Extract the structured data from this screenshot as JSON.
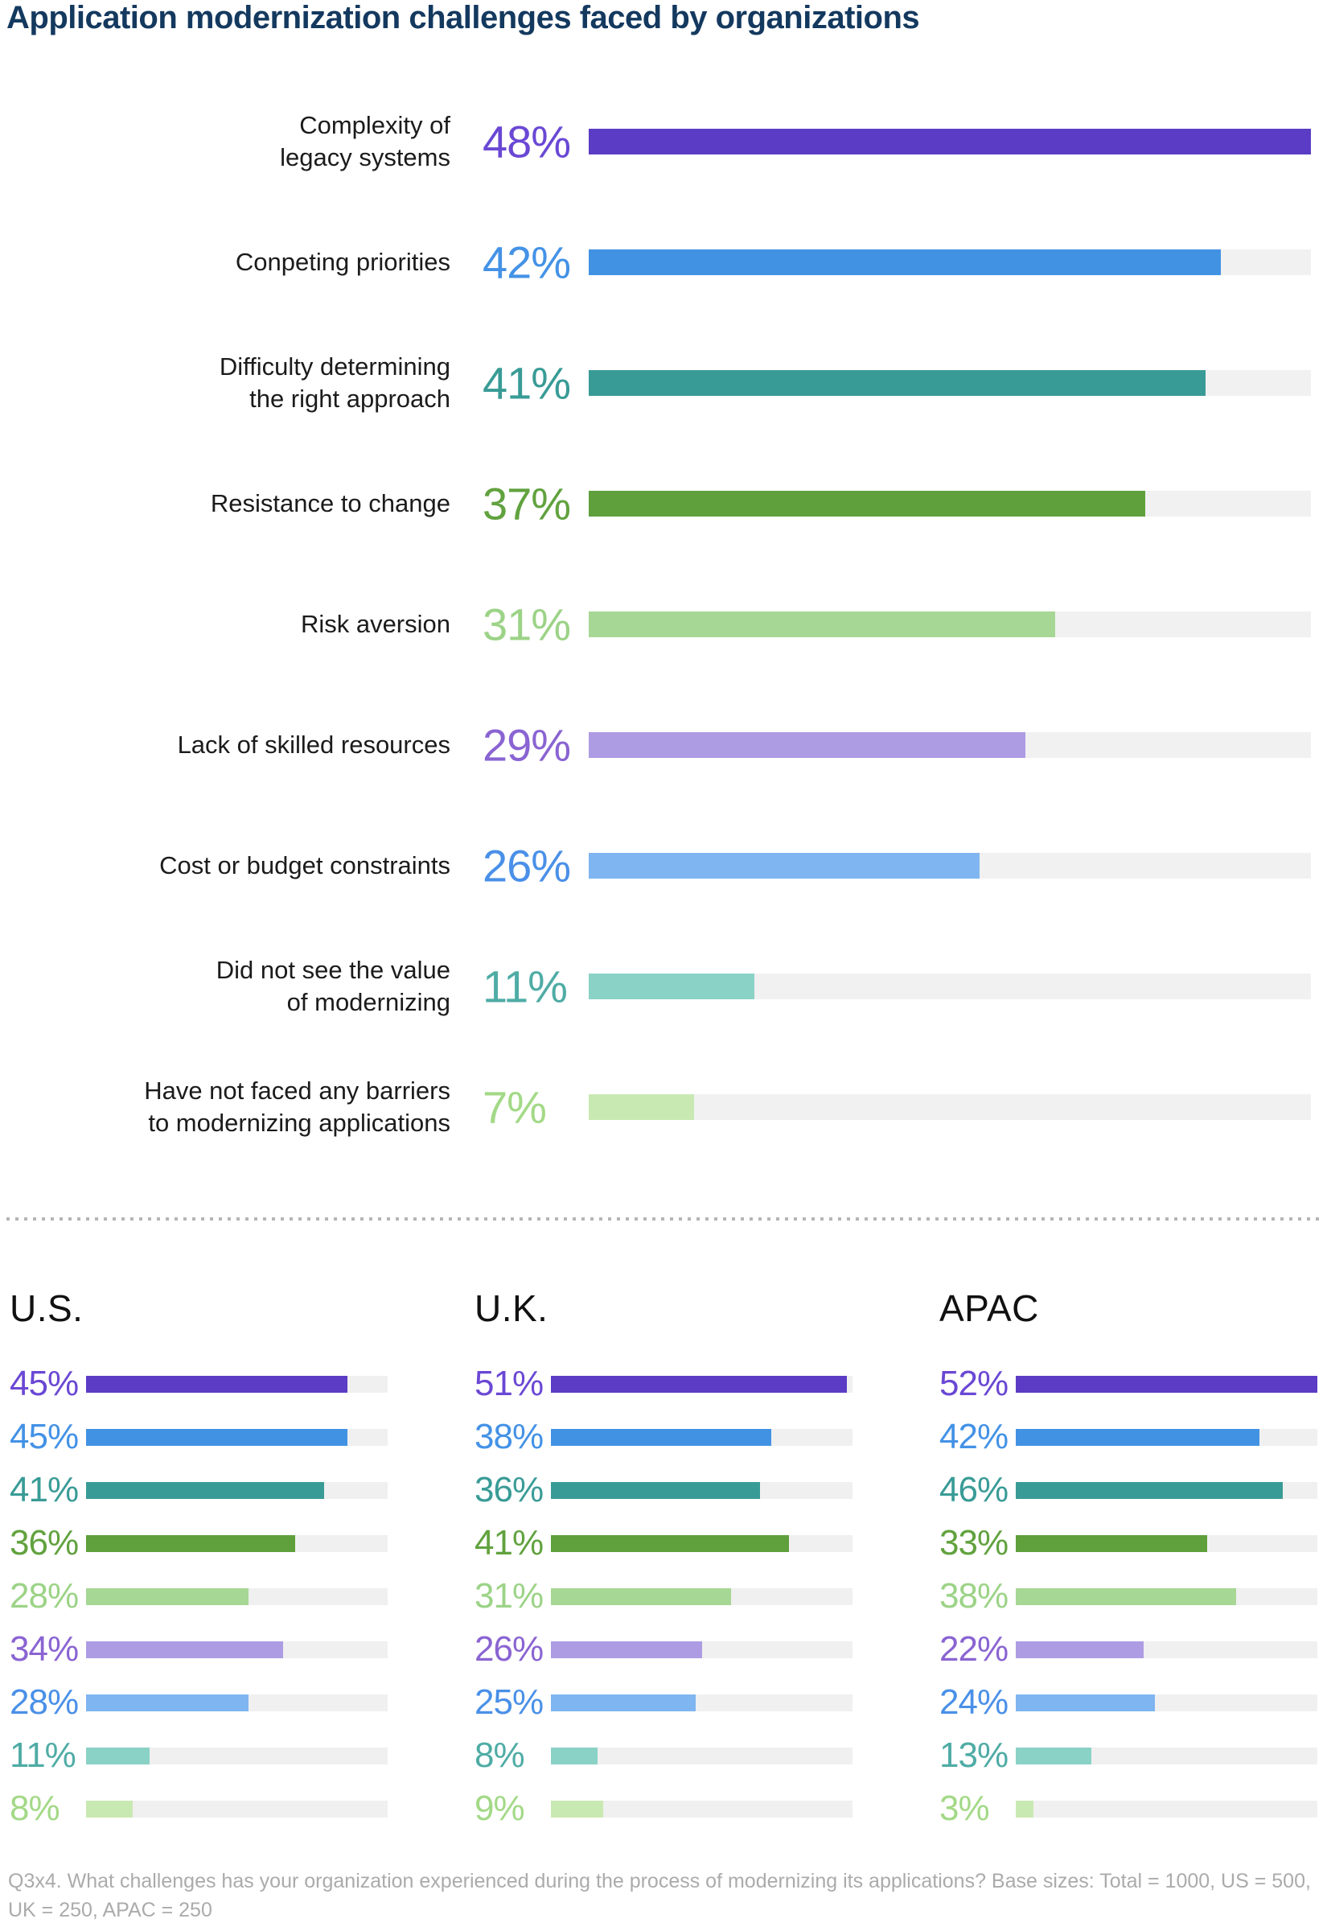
{
  "title": "Application modernization challenges faced by organizations",
  "chart_data": {
    "type": "bar",
    "orientation": "horizontal",
    "title": "Application modernization challenges faced by organizations",
    "categories": [
      "Complexity of legacy systems",
      "Conpeting priorities",
      "Difficulty determining the right approach",
      "Resistance to change",
      "Risk aversion",
      "Lack of skilled resources",
      "Cost or budget constraints",
      "Did not see the value of modernizing",
      "Have not faced any barriers to modernizing applications"
    ],
    "series": [
      {
        "name": "Total",
        "values": [
          48,
          42,
          41,
          37,
          31,
          29,
          26,
          11,
          7
        ]
      },
      {
        "name": "U.S.",
        "values": [
          45,
          45,
          41,
          36,
          28,
          34,
          28,
          11,
          8
        ]
      },
      {
        "name": "U.K.",
        "values": [
          51,
          38,
          36,
          41,
          31,
          26,
          25,
          8,
          9
        ]
      },
      {
        "name": "APAC",
        "values": [
          52,
          42,
          46,
          33,
          38,
          22,
          24,
          13,
          3
        ]
      }
    ],
    "main_axis_max": 48,
    "regional_axis_max": 52,
    "grid": false,
    "legend": "none",
    "track_color": "#f1f1f1"
  },
  "palette": [
    {
      "bar": "#5b3cc4",
      "text": "#6a48d4"
    },
    {
      "bar": "#4292e4",
      "text": "#4492e6"
    },
    {
      "bar": "#399b96",
      "text": "#399b96"
    },
    {
      "bar": "#5fa03c",
      "text": "#61a23e"
    },
    {
      "bar": "#a6d795",
      "text": "#9cd387"
    },
    {
      "bar": "#ad9ce3",
      "text": "#8a64d2"
    },
    {
      "bar": "#7fb5f0",
      "text": "#4a90e8"
    },
    {
      "bar": "#8ad2c6",
      "text": "#4faca5"
    },
    {
      "bar": "#c9e9b3",
      "text": "#a3d987"
    }
  ],
  "main": {
    "rows": [
      {
        "label": "Complexity of\nlegacy systems",
        "pct": "48%",
        "value": 48
      },
      {
        "label": "Conpeting priorities",
        "pct": "42%",
        "value": 42
      },
      {
        "label": "Difficulty determining\nthe right approach",
        "pct": "41%",
        "value": 41
      },
      {
        "label": "Resistance to change",
        "pct": "37%",
        "value": 37
      },
      {
        "label": "Risk aversion",
        "pct": "31%",
        "value": 31
      },
      {
        "label": "Lack of skilled resources",
        "pct": "29%",
        "value": 29
      },
      {
        "label": "Cost or budget constraints",
        "pct": "26%",
        "value": 26
      },
      {
        "label": "Did not see the value\nof modernizing",
        "pct": "11%",
        "value": 11
      },
      {
        "label": "Have not faced any barriers\nto modernizing applications",
        "pct": "7%",
        "value": 7
      }
    ]
  },
  "regions": [
    {
      "heading": "U.S.",
      "rows": [
        {
          "pct": "45%",
          "value": 45
        },
        {
          "pct": "45%",
          "value": 45
        },
        {
          "pct": "41%",
          "value": 41
        },
        {
          "pct": "36%",
          "value": 36
        },
        {
          "pct": "28%",
          "value": 28
        },
        {
          "pct": "34%",
          "value": 34
        },
        {
          "pct": "28%",
          "value": 28
        },
        {
          "pct": "11%",
          "value": 11
        },
        {
          "pct": "8%",
          "value": 8
        }
      ]
    },
    {
      "heading": "U.K.",
      "rows": [
        {
          "pct": "51%",
          "value": 51
        },
        {
          "pct": "38%",
          "value": 38
        },
        {
          "pct": "36%",
          "value": 36
        },
        {
          "pct": "41%",
          "value": 41
        },
        {
          "pct": "31%",
          "value": 31
        },
        {
          "pct": "26%",
          "value": 26
        },
        {
          "pct": "25%",
          "value": 25
        },
        {
          "pct": "8%",
          "value": 8
        },
        {
          "pct": "9%",
          "value": 9
        }
      ]
    },
    {
      "heading": "APAC",
      "rows": [
        {
          "pct": "52%",
          "value": 52
        },
        {
          "pct": "42%",
          "value": 42
        },
        {
          "pct": "46%",
          "value": 46
        },
        {
          "pct": "33%",
          "value": 33
        },
        {
          "pct": "38%",
          "value": 38
        },
        {
          "pct": "22%",
          "value": 22
        },
        {
          "pct": "24%",
          "value": 24
        },
        {
          "pct": "13%",
          "value": 13
        },
        {
          "pct": "3%",
          "value": 3
        }
      ]
    }
  ],
  "footer": {
    "line1": "Q3x4. What challenges has your organization experienced during the process of modernizing its applications? Base sizes: Total = 1000, US = 500,",
    "line2": "UK = 250, APAC = 250"
  }
}
